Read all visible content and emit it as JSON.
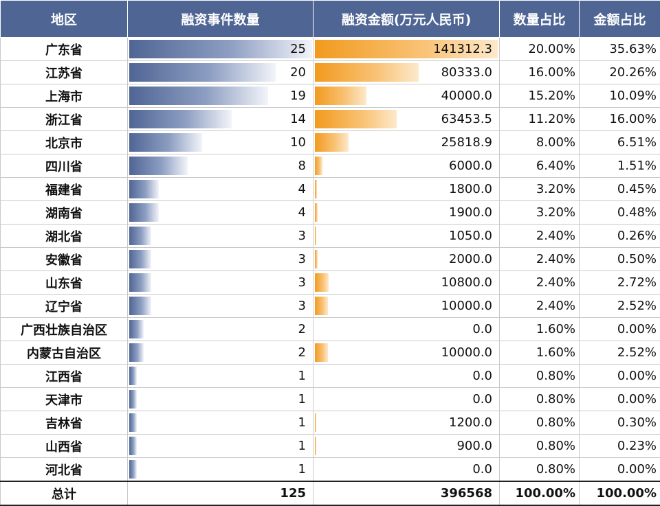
{
  "headers": {
    "region": "地区",
    "count": "融资事件数量",
    "amount": "融资金额(万元人民币)",
    "count_share": "数量占比",
    "amount_share": "金额占比"
  },
  "colors": {
    "header_bg": "#4f6594",
    "count_bar": "#4f6594",
    "amount_bar": "#f29a1e"
  },
  "chart_data": {
    "type": "table",
    "columns": [
      "地区",
      "融资事件数量",
      "融资金额(万元人民币)",
      "数量占比",
      "金额占比"
    ],
    "rows": [
      {
        "region": "广东省",
        "count": 25,
        "count_label": "25",
        "amount": 141312.3,
        "amount_label": "141312.3",
        "count_share": "20.00%",
        "amount_share": "35.63%"
      },
      {
        "region": "江苏省",
        "count": 20,
        "count_label": "20",
        "amount": 80333.0,
        "amount_label": "80333.0",
        "count_share": "16.00%",
        "amount_share": "20.26%"
      },
      {
        "region": "上海市",
        "count": 19,
        "count_label": "19",
        "amount": 40000.0,
        "amount_label": "40000.0",
        "count_share": "15.20%",
        "amount_share": "10.09%"
      },
      {
        "region": "浙江省",
        "count": 14,
        "count_label": "14",
        "amount": 63453.5,
        "amount_label": "63453.5",
        "count_share": "11.20%",
        "amount_share": "16.00%"
      },
      {
        "region": "北京市",
        "count": 10,
        "count_label": "10",
        "amount": 25818.9,
        "amount_label": "25818.9",
        "count_share": "8.00%",
        "amount_share": "6.51%"
      },
      {
        "region": "四川省",
        "count": 8,
        "count_label": "8",
        "amount": 6000.0,
        "amount_label": "6000.0",
        "count_share": "6.40%",
        "amount_share": "1.51%"
      },
      {
        "region": "福建省",
        "count": 4,
        "count_label": "4",
        "amount": 1800.0,
        "amount_label": "1800.0",
        "count_share": "3.20%",
        "amount_share": "0.45%"
      },
      {
        "region": "湖南省",
        "count": 4,
        "count_label": "4",
        "amount": 1900.0,
        "amount_label": "1900.0",
        "count_share": "3.20%",
        "amount_share": "0.48%"
      },
      {
        "region": "湖北省",
        "count": 3,
        "count_label": "3",
        "amount": 1050.0,
        "amount_label": "1050.0",
        "count_share": "2.40%",
        "amount_share": "0.26%"
      },
      {
        "region": "安徽省",
        "count": 3,
        "count_label": "3",
        "amount": 2000.0,
        "amount_label": "2000.0",
        "count_share": "2.40%",
        "amount_share": "0.50%"
      },
      {
        "region": "山东省",
        "count": 3,
        "count_label": "3",
        "amount": 10800.0,
        "amount_label": "10800.0",
        "count_share": "2.40%",
        "amount_share": "2.72%"
      },
      {
        "region": "辽宁省",
        "count": 3,
        "count_label": "3",
        "amount": 10000.0,
        "amount_label": "10000.0",
        "count_share": "2.40%",
        "amount_share": "2.52%"
      },
      {
        "region": "广西壮族自治区",
        "count": 2,
        "count_label": "2",
        "amount": 0.0,
        "amount_label": "0.0",
        "count_share": "1.60%",
        "amount_share": "0.00%"
      },
      {
        "region": "内蒙古自治区",
        "count": 2,
        "count_label": "2",
        "amount": 10000.0,
        "amount_label": "10000.0",
        "count_share": "1.60%",
        "amount_share": "2.52%"
      },
      {
        "region": "江西省",
        "count": 1,
        "count_label": "1",
        "amount": 0.0,
        "amount_label": "0.0",
        "count_share": "0.80%",
        "amount_share": "0.00%"
      },
      {
        "region": "天津市",
        "count": 1,
        "count_label": "1",
        "amount": 0.0,
        "amount_label": "0.0",
        "count_share": "0.80%",
        "amount_share": "0.00%"
      },
      {
        "region": "吉林省",
        "count": 1,
        "count_label": "1",
        "amount": 1200.0,
        "amount_label": "1200.0",
        "count_share": "0.80%",
        "amount_share": "0.30%"
      },
      {
        "region": "山西省",
        "count": 1,
        "count_label": "1",
        "amount": 900.0,
        "amount_label": "900.0",
        "count_share": "0.80%",
        "amount_share": "0.23%"
      },
      {
        "region": "河北省",
        "count": 1,
        "count_label": "1",
        "amount": 0.0,
        "amount_label": "0.0",
        "count_share": "0.80%",
        "amount_share": "0.00%"
      }
    ],
    "total": {
      "label": "总计",
      "count": "125",
      "amount": "396568",
      "count_share": "100.00%",
      "amount_share": "100.00%"
    }
  }
}
